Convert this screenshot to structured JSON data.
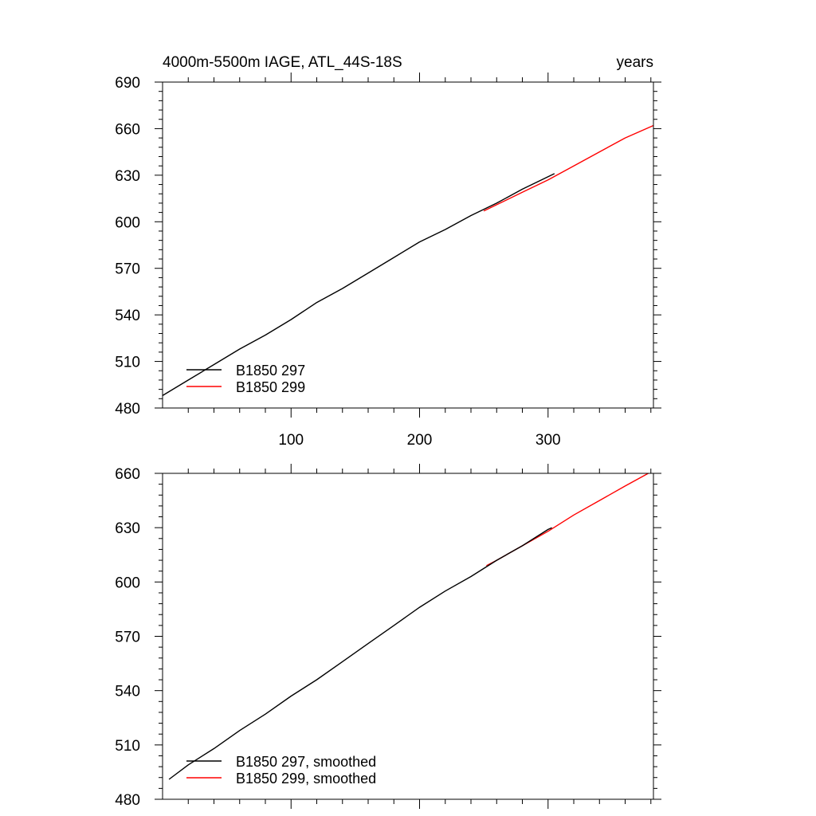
{
  "chart_data": [
    {
      "type": "line",
      "title": "4000m-5500m IAGE, ATL_44S-18S",
      "units": "years",
      "xlim": [
        0,
        382
      ],
      "ylim": [
        480,
        690
      ],
      "x_ticks": [
        100,
        200,
        300
      ],
      "y_ticks": [
        480,
        510,
        540,
        570,
        600,
        630,
        660,
        690
      ],
      "legend_position": "bottom-left",
      "series": [
        {
          "name": "B1850 297",
          "color": "#000000",
          "x": [
            0,
            20,
            40,
            60,
            80,
            100,
            120,
            140,
            160,
            180,
            200,
            220,
            240,
            260,
            280,
            300,
            305
          ],
          "y": [
            488,
            498,
            508,
            518,
            527,
            537,
            548,
            557,
            567,
            577,
            587,
            595,
            604,
            612,
            621,
            629,
            631
          ]
        },
        {
          "name": "B1850 299",
          "color": "#ff0000",
          "x": [
            250,
            260,
            280,
            300,
            320,
            340,
            360,
            382
          ],
          "y": [
            607,
            611,
            619,
            627,
            636,
            645,
            654,
            662
          ]
        }
      ]
    },
    {
      "type": "line",
      "title": "",
      "xlim": [
        0,
        382
      ],
      "ylim": [
        480,
        660
      ],
      "x_ticks": [
        100,
        200,
        300
      ],
      "y_ticks": [
        480,
        510,
        540,
        570,
        600,
        630,
        660
      ],
      "legend_position": "bottom-left",
      "series": [
        {
          "name": "B1850 297, smoothed",
          "color": "#000000",
          "x": [
            5,
            20,
            40,
            60,
            80,
            100,
            120,
            140,
            160,
            180,
            200,
            220,
            240,
            260,
            280,
            300,
            303
          ],
          "y": [
            491,
            499,
            508,
            518,
            527,
            537,
            546,
            556,
            566,
            576,
            586,
            595,
            603,
            612,
            620,
            629,
            630
          ]
        },
        {
          "name": "B1850 299, smoothed",
          "color": "#ff0000",
          "x": [
            252,
            260,
            280,
            300,
            320,
            340,
            360,
            378
          ],
          "y": [
            609,
            612,
            620,
            628,
            637,
            645,
            653,
            660
          ]
        }
      ]
    }
  ]
}
